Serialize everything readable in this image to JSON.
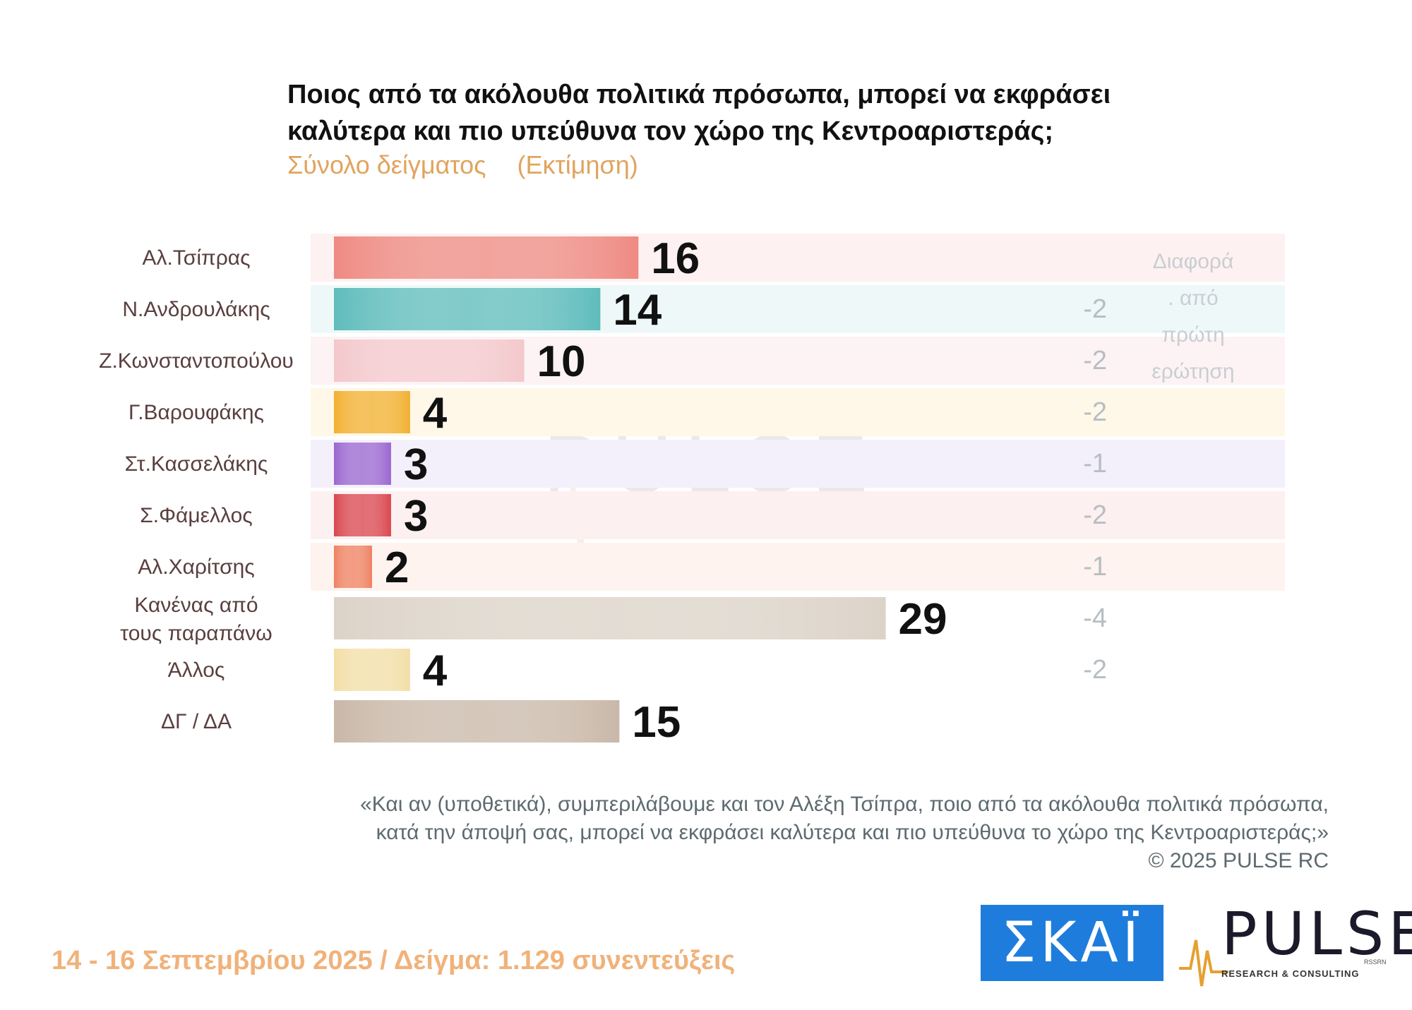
{
  "title": "Ποιος από τα ακόλουθα πολιτικά πρόσωπα, μπορεί να εκφράσει καλύτερα και πιο υπεύθυνα τον χώρο της Κεντροαριστεράς;",
  "subtitle": {
    "sample": "Σύνολο δείγματος",
    "estimate": "(Εκτίμηση)"
  },
  "watermark": {
    "name": "PULSE",
    "sub": "RESEARCH & CONSULTING"
  },
  "chart_data": {
    "type": "bar",
    "orientation": "horizontal",
    "categories": [
      [
        "Αλ.Τσίπρας"
      ],
      [
        "Ν.Ανδρουλάκης"
      ],
      [
        "Ζ.Κωνσταντοπούλου"
      ],
      [
        "Γ.Βαρουφάκης"
      ],
      [
        "Στ.Κασσελάκης"
      ],
      [
        "Σ.Φάμελλος"
      ],
      [
        "Αλ.Χαρίτσης"
      ],
      [
        "Κανένας από",
        "τους παραπάνω"
      ],
      [
        "Άλλος"
      ],
      [
        "ΔΓ / ΔΑ"
      ]
    ],
    "values": [
      16,
      14,
      10,
      4,
      3,
      3,
      2,
      29,
      4,
      15
    ],
    "difference": {
      "label_lines": [
        "Διαφορά",
        ". από",
        "πρώτη",
        "ερώτηση"
      ],
      "values": [
        null,
        "-2",
        "-2",
        "-2",
        "-1",
        "-2",
        "-1",
        "-4",
        "-2",
        null
      ]
    },
    "colors": [
      "#ee8a82",
      "#5fbcbc",
      "#f3c8cc",
      "#f2b030",
      "#9a66d0",
      "#d9464e",
      "#ee8060",
      "#dcd3c8",
      "#f2dea6",
      "#c9b8a8"
    ],
    "xlim": [
      0,
      30
    ],
    "grid": false,
    "legend": "none"
  },
  "footnote": {
    "line1": "«Και αν (υποθετικά), συμπεριλάβουμε και τον Αλέξη Τσίπρα, ποιο από τα ακόλουθα πολιτικά πρόσωπα,",
    "line2": "κατά την άποψή σας, μπορεί να εκφράσει καλύτερα και πιο υπεύθυνα το χώρο της Κεντροαριστεράς;»",
    "copyright": "©  2025  PULSE RC"
  },
  "date_line": "14 - 16 Σεπτεμβρίου 2025  /  Δείγμα:  1.129 συνεντεύξεις",
  "logos": {
    "skai": "ΣΚΑΪ",
    "pulse": "PULSE",
    "pulse_small": "RSSRN",
    "pulse_sub": "RESEARCH & CONSULTING"
  }
}
